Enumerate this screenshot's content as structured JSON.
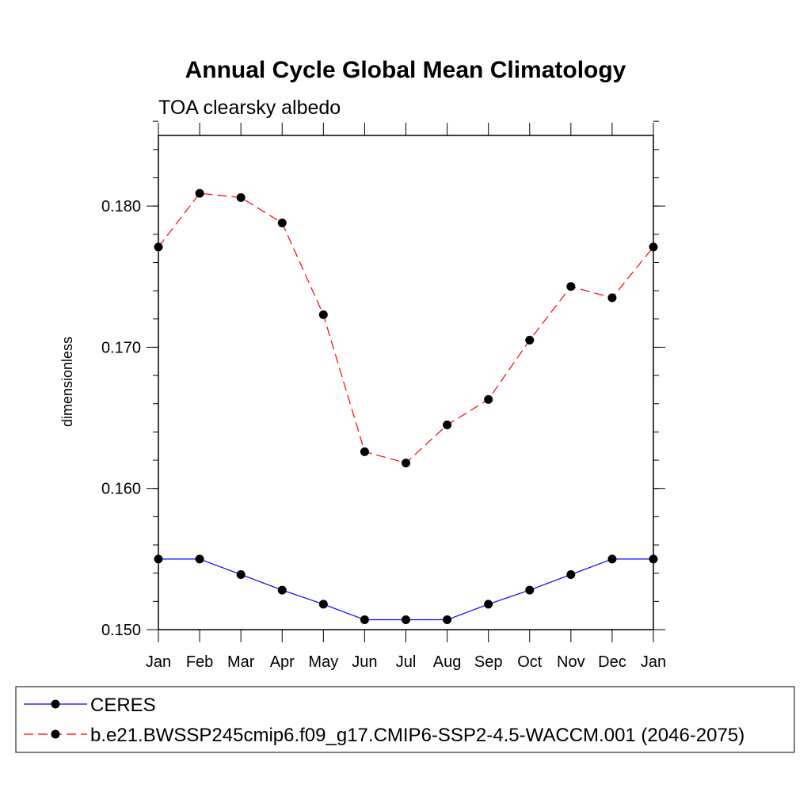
{
  "chart_data": {
    "type": "line",
    "title": "Annual Cycle Global Mean Climatology",
    "subtitle": "TOA clearsky albedo",
    "xlabel": "",
    "ylabel": "dimensionless",
    "categories": [
      "Jan",
      "Feb",
      "Mar",
      "Apr",
      "May",
      "Jun",
      "Jul",
      "Aug",
      "Sep",
      "Oct",
      "Nov",
      "Dec",
      "Jan"
    ],
    "ylim": [
      0.15,
      0.185
    ],
    "yticks": [
      "0.150",
      "0.160",
      "0.170",
      "0.180"
    ],
    "series": [
      {
        "name": "CERES",
        "color": "#0000ff",
        "dash": "solid",
        "values": [
          0.155,
          0.155,
          0.1539,
          0.1528,
          0.1518,
          0.1507,
          0.1507,
          0.1507,
          0.1518,
          0.1528,
          0.1539,
          0.155,
          0.155
        ]
      },
      {
        "name": "b.e21.BWSSP245cmip6.f09_g17.CMIP6-SSP2-4.5-WACCM.001 (2046-2075)",
        "color": "#ff0000",
        "dash": "dashed",
        "values": [
          0.1771,
          0.1809,
          0.1806,
          0.1788,
          0.1723,
          0.1626,
          0.1618,
          0.1645,
          0.1663,
          0.1705,
          0.1743,
          0.1735,
          0.1771
        ]
      }
    ],
    "legend": "bottom"
  }
}
